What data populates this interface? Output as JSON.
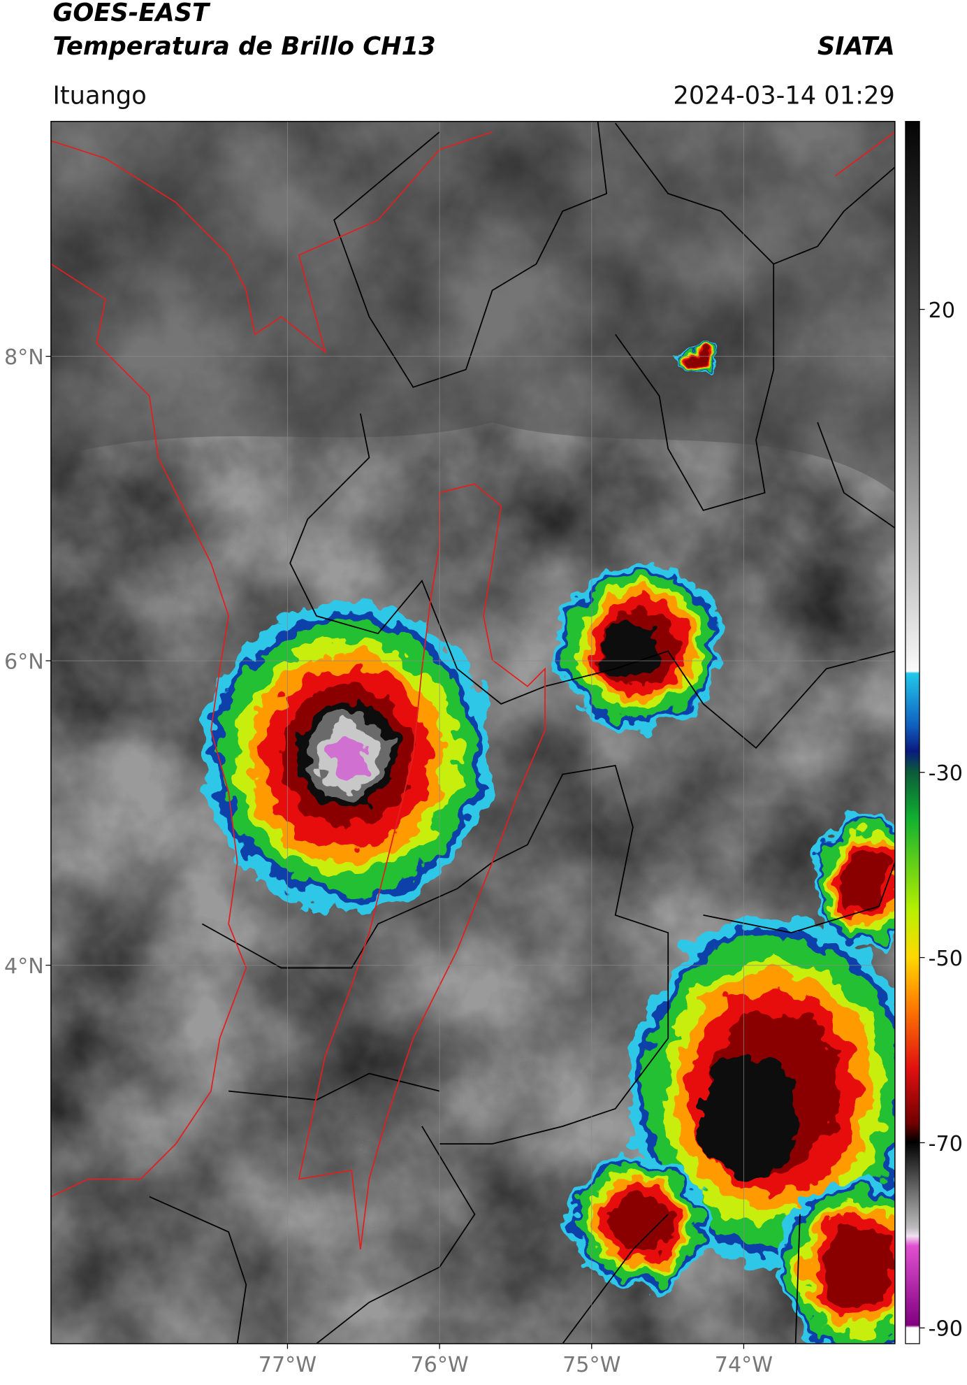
{
  "header": {
    "title": "GOES-EAST",
    "subtitle": "Temperatura de Brillo CH13",
    "brand": "SIATA",
    "location": "Ituango",
    "datetime": "2024-03-14 01:29"
  },
  "map": {
    "lat_range": [
      1.514,
      9.543
    ],
    "lon_range": [
      -78.555,
      -73.006
    ],
    "lat_ticks": [
      {
        "value": 8,
        "label": "8°N"
      },
      {
        "value": 6,
        "label": "6°N"
      },
      {
        "value": 4,
        "label": "4°N"
      }
    ],
    "lon_ticks": [
      {
        "value": -77,
        "label": "77°W"
      },
      {
        "value": -76,
        "label": "76°W"
      },
      {
        "value": -75,
        "label": "75°W"
      },
      {
        "value": -74,
        "label": "74°W"
      }
    ]
  },
  "colorbar": {
    "range": [
      -91.7,
      40.3
    ],
    "ticks": [
      20,
      -30,
      -50,
      -70,
      -90
    ]
  }
}
